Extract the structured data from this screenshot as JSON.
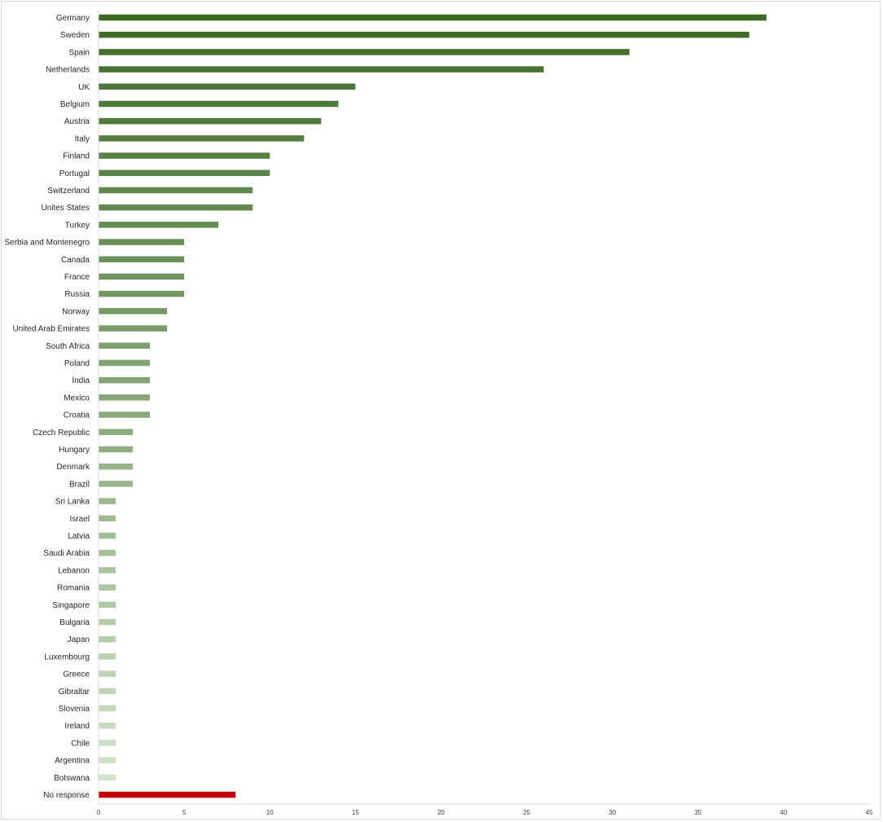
{
  "chart_data": {
    "type": "bar",
    "orientation": "horizontal",
    "title": "",
    "xlabel": "",
    "ylabel": "",
    "categories": [
      "Germany",
      "Sweden",
      "Spain",
      "Netherlands",
      "UK",
      "Belgium",
      "Austria",
      "Italy",
      "Finland",
      "Portugal",
      "Switzerland",
      "Unites States",
      "Turkey",
      "Serbia and Montenegro",
      "Canada",
      "France",
      "Russia",
      "Norway",
      "United Arab Emirates",
      "South Africa",
      "Poland",
      "India",
      "Mexico",
      "Croatia",
      "Czech Republic",
      "Hungary",
      "Denmark",
      "Brazil",
      "Sri Lanka",
      "Israel",
      "Latvia",
      "Saudi Arabia",
      "Lebanon",
      "Romania",
      "Singapore",
      "Bulgaria",
      "Japan",
      "Luxembourg",
      "Greece",
      "Gibraltar",
      "Slovenia",
      "Ireland",
      "Chile",
      "Argentina",
      "Botswana",
      "No response"
    ],
    "values": [
      39,
      38,
      31,
      26,
      15,
      14,
      13,
      12,
      10,
      10,
      9,
      9,
      7,
      5,
      5,
      5,
      5,
      4,
      4,
      3,
      3,
      3,
      3,
      3,
      2,
      2,
      2,
      2,
      1,
      1,
      1,
      1,
      1,
      1,
      1,
      1,
      1,
      1,
      1,
      1,
      1,
      1,
      1,
      1,
      1,
      8
    ],
    "xlim": [
      0,
      45
    ],
    "xticks": [
      0,
      5,
      10,
      15,
      20,
      25,
      30,
      35,
      40,
      45
    ],
    "grid": false,
    "legend": "none",
    "colors": {
      "gradient_start": "#3d6b26",
      "gradient_end": "#d3e3ca",
      "no_response": "#c00000"
    }
  }
}
